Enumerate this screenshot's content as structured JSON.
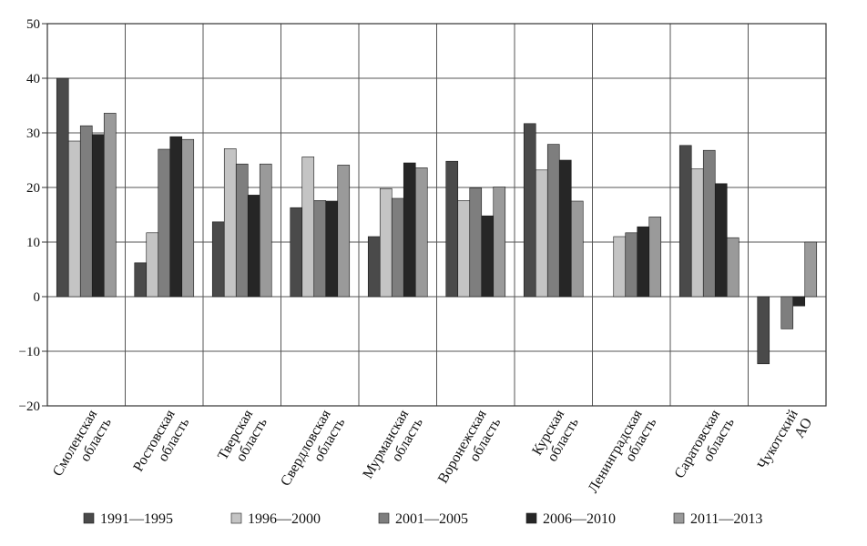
{
  "chart_data": {
    "type": "bar",
    "title": "",
    "xlabel": "",
    "ylabel": "",
    "ylim": [
      -20,
      50
    ],
    "yticks": [
      -20,
      -10,
      0,
      10,
      20,
      30,
      40,
      50
    ],
    "ytick_labels": [
      "−20",
      "−10",
      "0",
      "10",
      "20",
      "30",
      "40",
      "50"
    ],
    "grid": true,
    "legend_position": "bottom",
    "categories": [
      [
        "Смоленская",
        "область"
      ],
      [
        "Ростовская",
        "область"
      ],
      [
        "Тверская",
        "область"
      ],
      [
        "Свердловская",
        "область"
      ],
      [
        "Мурманская",
        "область"
      ],
      [
        "Воронежская",
        "область"
      ],
      [
        "Курская",
        "область"
      ],
      [
        "Ленинградская",
        "область"
      ],
      [
        "Саратовская",
        "область"
      ],
      [
        "Чукотский",
        "АО"
      ]
    ],
    "series": [
      {
        "name": "1991—1995",
        "color": "#4a4a4a",
        "values": [
          40,
          6.2,
          13.7,
          16.3,
          11,
          24.8,
          31.7,
          null,
          27.7,
          -12.3
        ]
      },
      {
        "name": "1996—2000",
        "color": "#c4c4c4",
        "values": [
          28.5,
          11.7,
          27.1,
          25.6,
          19.8,
          17.6,
          23.2,
          11,
          23.4,
          null
        ]
      },
      {
        "name": "2001—2005",
        "color": "#7e7e7e",
        "values": [
          31.3,
          27,
          24.3,
          17.6,
          18,
          19.9,
          27.9,
          11.7,
          26.8,
          -5.9
        ]
      },
      {
        "name": "2006—2010",
        "color": "#262626",
        "values": [
          29.7,
          29.3,
          18.6,
          17.5,
          24.5,
          14.8,
          25,
          12.8,
          20.7,
          -1.7
        ]
      },
      {
        "name": "2011—2013",
        "color": "#9a9a9a",
        "values": [
          33.6,
          28.8,
          24.3,
          24.1,
          23.6,
          20.1,
          17.5,
          14.6,
          10.8,
          10
        ]
      }
    ]
  }
}
